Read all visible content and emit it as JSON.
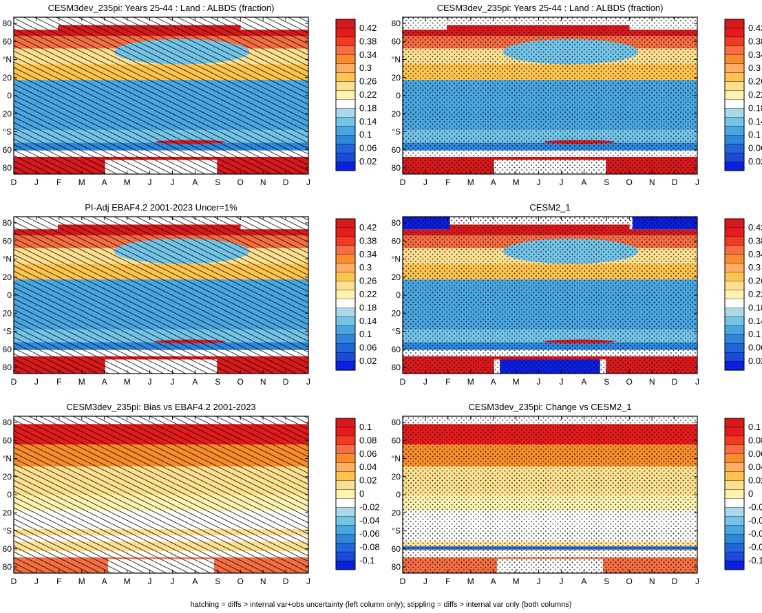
{
  "months": [
    "D",
    "J",
    "F",
    "M",
    "A",
    "M",
    "J",
    "J",
    "A",
    "S",
    "O",
    "N",
    "D",
    "J"
  ],
  "lat_tick_labels": [
    "80",
    "60",
    "°N",
    "20",
    "0",
    "20",
    "°S",
    "60",
    "80"
  ],
  "colorbars": {
    "absolute": {
      "labels": [
        "0.42",
        "0.38",
        "0.34",
        "0.3",
        "0.26",
        "0.22",
        "0.18",
        "0.14",
        "0.1",
        "0.06",
        "0.02"
      ],
      "colors": [
        "#d7191c",
        "#e41a1c",
        "#f03b20",
        "#f46d43",
        "#f98d2c",
        "#fdae61",
        "#fec44f",
        "#fee090",
        "#fff3b0",
        "#ffffff",
        "#abd9e9",
        "#74c4e8",
        "#4aa6e0",
        "#2f86db",
        "#2166d8",
        "#1a4bd6",
        "#0a1fe0"
      ]
    },
    "difference": {
      "labels": [
        "0.1",
        "0.08",
        "0.06",
        "0.04",
        "0.02",
        "0",
        "-0.02",
        "-0.04",
        "-0.06",
        "-0.08",
        "-0.1"
      ],
      "colors": [
        "#d7191c",
        "#e41a1c",
        "#f03b20",
        "#f46d43",
        "#f98d2c",
        "#fdae61",
        "#fec44f",
        "#fee090",
        "#fff3b0",
        "#ffffff",
        "#abd9e9",
        "#74c4e8",
        "#4aa6e0",
        "#2f86db",
        "#2166d8",
        "#1a4bd6",
        "#0a1fe0"
      ]
    }
  },
  "chart_data": [
    {
      "type": "heatmap",
      "title": "CESM3dev_235pi: Years 25-44 : Land : ALBDS (fraction)",
      "kind": "absolute",
      "overlay": "hatch"
    },
    {
      "type": "heatmap",
      "title": "CESM3dev_235pi: Years 25-44 : Land : ALBDS (fraction)",
      "kind": "absolute",
      "overlay": "stipple"
    },
    {
      "type": "heatmap",
      "title": "PI-Adj EBAF4.2 2001-2023 Uncer=1%",
      "kind": "absolute",
      "overlay": "hatch"
    },
    {
      "type": "heatmap",
      "title": "CESM2_1",
      "kind": "absolute",
      "overlay": "stipple"
    },
    {
      "type": "heatmap",
      "title": "CESM3dev_235pi: Bias vs EBAF4.2 2001-2023",
      "kind": "difference",
      "overlay": "hatch"
    },
    {
      "type": "heatmap",
      "title": "CESM3dev_235pi: Change vs CESM2_1",
      "kind": "difference",
      "overlay": "stipple"
    }
  ],
  "caption": "hatching = diffs > internal var+obs uncertainty (left column only); stippling = diffs > internal var only (both columns)"
}
